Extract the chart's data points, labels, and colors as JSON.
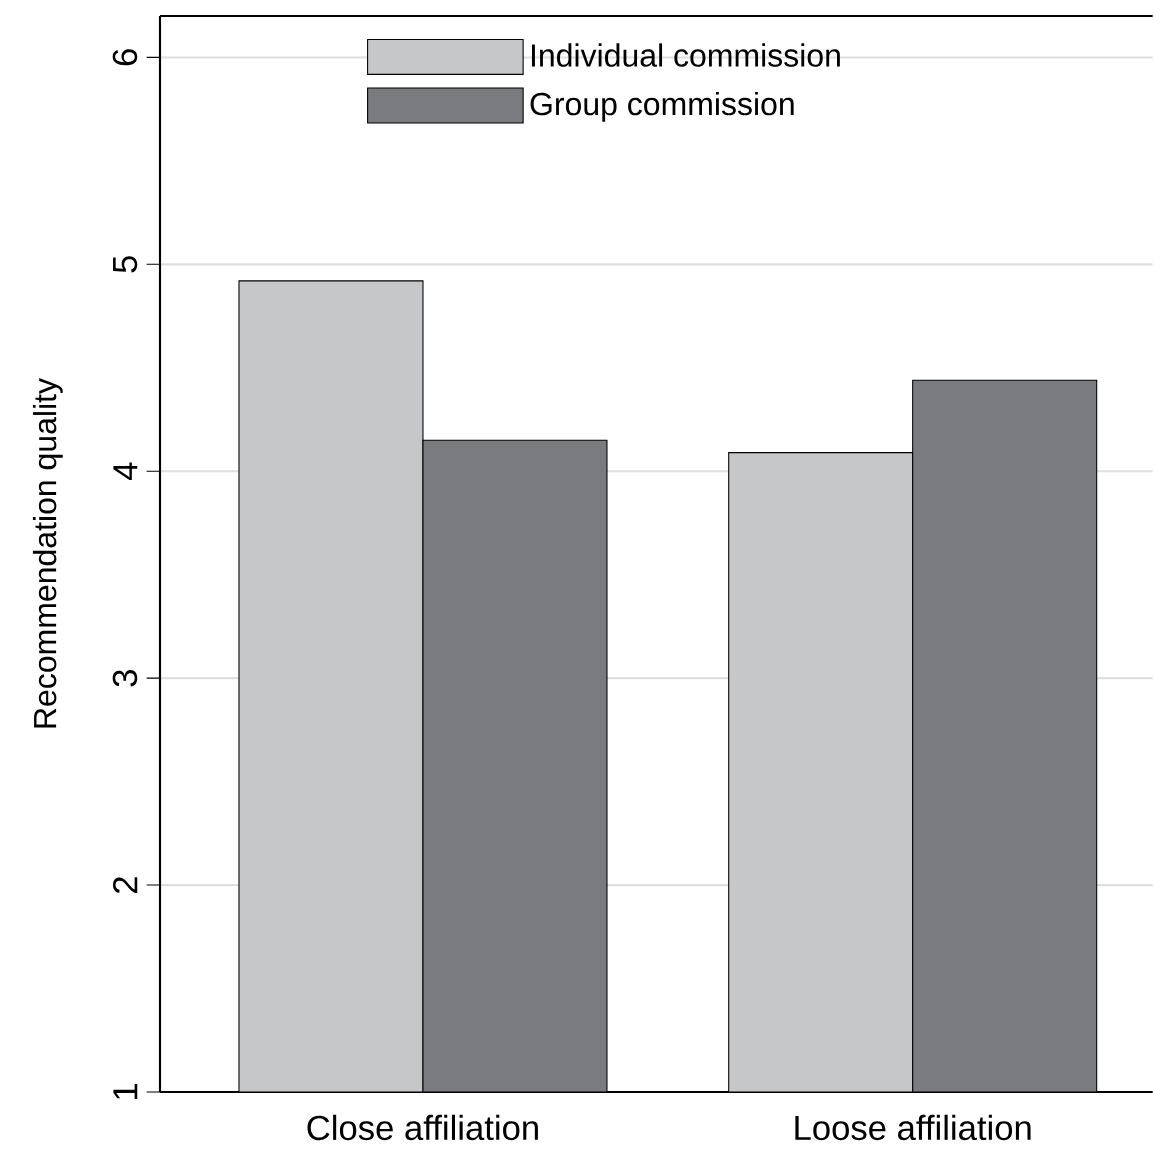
{
  "chart_data": {
    "type": "bar",
    "ylabel": "Recommendation quality",
    "categories": [
      "Close affiliation",
      "Loose affiliation"
    ],
    "series": [
      {
        "name": "Individual commission",
        "color": "#c6c7c9",
        "values": [
          4.92,
          4.09
        ]
      },
      {
        "name": "Group commission",
        "color": "#7a7b7f",
        "values": [
          4.15,
          4.44
        ]
      }
    ],
    "ylim": [
      1,
      6.2
    ],
    "yticks": [
      1,
      2,
      3,
      4,
      5,
      6
    ],
    "grid": "y",
    "legend": "top"
  }
}
